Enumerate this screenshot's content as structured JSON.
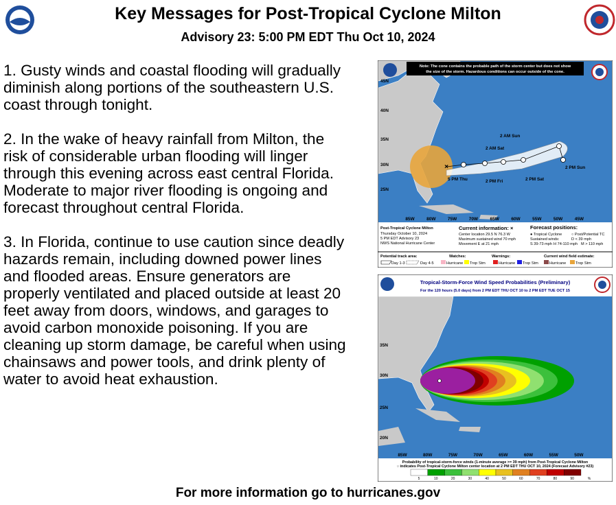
{
  "header": {
    "title": "Key Messages for Post-Tropical Cyclone Milton",
    "subtitle": "Advisory 23: 5:00 PM EDT Thu Oct 10, 2024"
  },
  "messages": [
    "1. Gusty winds and coastal flooding will gradually diminish along portions of the southeastern U.S. coast through tonight.",
    "2. In the wake of heavy rainfall from Milton, the risk of considerable urban flooding will linger through this evening across east central Florida. Moderate to major river flooding is ongoing and forecast throughout central Florida.",
    "3. In Florida, continue to use caution since deadly hazards remain, including downed power lines and flooded areas. Ensure generators are properly ventilated and placed outside at least 20 feet away from doors, windows, and garages to avoid carbon monoxide poisoning. If you are cleaning up storm damage, be careful when using chainsaws and power tools, and drink plenty of water to avoid heat exhaustion."
  ],
  "cone_map": {
    "note": [
      "Note: The cone contains the probable path of the storm center but does not show",
      "the size of the storm. Hazardous conditions can occur outside of the cone."
    ],
    "lat_labels": [
      "45N",
      "40N",
      "35N",
      "30N",
      "25N"
    ],
    "lon_labels": [
      "85W",
      "80W",
      "75W",
      "70W",
      "65W",
      "60W",
      "55W",
      "50W",
      "45W"
    ],
    "forecast_labels": [
      "2 AM Sun",
      "2 AM Sat",
      "2 PM Sun",
      "5 PM Thu",
      "2 PM Fri",
      "2 PM Sat"
    ],
    "storm_info": [
      "Post-Tropical Cyclone Milton",
      "Thursday October 10, 2024",
      "5 PM EDT Advisory 23",
      "NWS National Hurricane Center"
    ],
    "current_info": [
      "Current information: ×",
      "Center location 29.5 N 76.3 W",
      "Maximum sustained wind 70 mph",
      "Movement E at 21 mph"
    ],
    "forecast_info": [
      "Forecast positions:",
      "● Tropical Cyclone",
      "○ Post/Potential TC",
      "Sustained winds:",
      "D < 39 mph",
      "S 39-73 mph",
      "H 74-110 mph",
      "M > 110 mph"
    ],
    "legend": [
      "Potential track area:",
      "Day 1-3",
      "Day 4-5",
      "Watches:",
      "Hurricane",
      "Trop Stm",
      "Warnings:",
      "Hurricane",
      "Trop Stm",
      "Current wind field estimate:",
      "Hurricane",
      "Trop Stm"
    ]
  },
  "prob_map": {
    "title": "Tropical-Storm-Force Wind Speed Probabilities (Preliminary)",
    "subtitle": "For the 120 hours (5.0 days) from 2 PM EDT THU OCT 10 to 2 PM EDT TUE OCT 15",
    "lat_labels": [
      "35N",
      "30N",
      "25N",
      "20N"
    ],
    "lon_labels": [
      "85W",
      "80W",
      "75W",
      "70W",
      "65W",
      "60W",
      "55W",
      "50W"
    ],
    "caption": [
      "Probability of tropical-storm-force winds (1-minute average >= 39 mph) from Post-Tropical Cyclone Milton",
      "○ indicates Post-Tropical Cyclone Milton center location at 2 PM EDT THU OCT 10, 2024 (Forecast Advisory #23)"
    ],
    "scale_labels": [
      "5",
      "10",
      "20",
      "30",
      "40",
      "50",
      "60",
      "70",
      "80",
      "90",
      "%"
    ]
  },
  "footer": "For more information go to hurricanes.gov"
}
